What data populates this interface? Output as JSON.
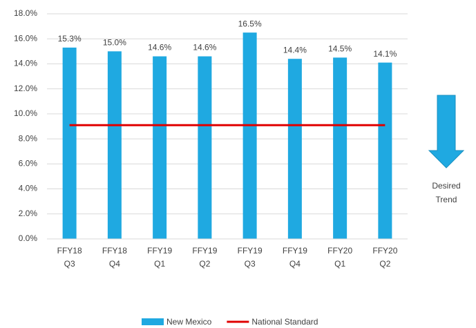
{
  "chart_data": {
    "type": "bar",
    "categories": [
      [
        "FFY18",
        "Q3"
      ],
      [
        "FFY18",
        "Q4"
      ],
      [
        "FFY19",
        "Q1"
      ],
      [
        "FFY19",
        "Q2"
      ],
      [
        "FFY19",
        "Q3"
      ],
      [
        "FFY19",
        "Q4"
      ],
      [
        "FFY20",
        "Q1"
      ],
      [
        "FFY20",
        "Q2"
      ]
    ],
    "series": [
      {
        "name": "New Mexico",
        "color": "#1fa9e1",
        "type": "bar",
        "values": [
          15.3,
          15.0,
          14.6,
          14.6,
          16.5,
          14.4,
          14.5,
          14.1
        ],
        "value_labels": [
          "15.3%",
          "15.0%",
          "14.6%",
          "14.6%",
          "16.5%",
          "14.4%",
          "14.5%",
          "14.1%"
        ]
      },
      {
        "name": "National Standard",
        "color": "#e00000",
        "type": "line",
        "values": [
          9.1,
          9.1,
          9.1,
          9.1,
          9.1,
          9.1,
          9.1,
          9.1
        ]
      }
    ],
    "ylim": [
      0,
      18
    ],
    "yticks": [
      {
        "value": 0,
        "label": "0.0%"
      },
      {
        "value": 2,
        "label": "2.0%"
      },
      {
        "value": 4,
        "label": "4.0%"
      },
      {
        "value": 6,
        "label": "6.0%"
      },
      {
        "value": 8,
        "label": "8.0%"
      },
      {
        "value": 10,
        "label": "10.0%"
      },
      {
        "value": 12,
        "label": "12.0%"
      },
      {
        "value": 14,
        "label": "14.0%"
      },
      {
        "value": 16,
        "label": "16.0%"
      },
      {
        "value": 18,
        "label": "18.0%"
      }
    ],
    "grid": true,
    "legend": "bottom",
    "annotation": [
      "Desired",
      "Trend"
    ]
  }
}
